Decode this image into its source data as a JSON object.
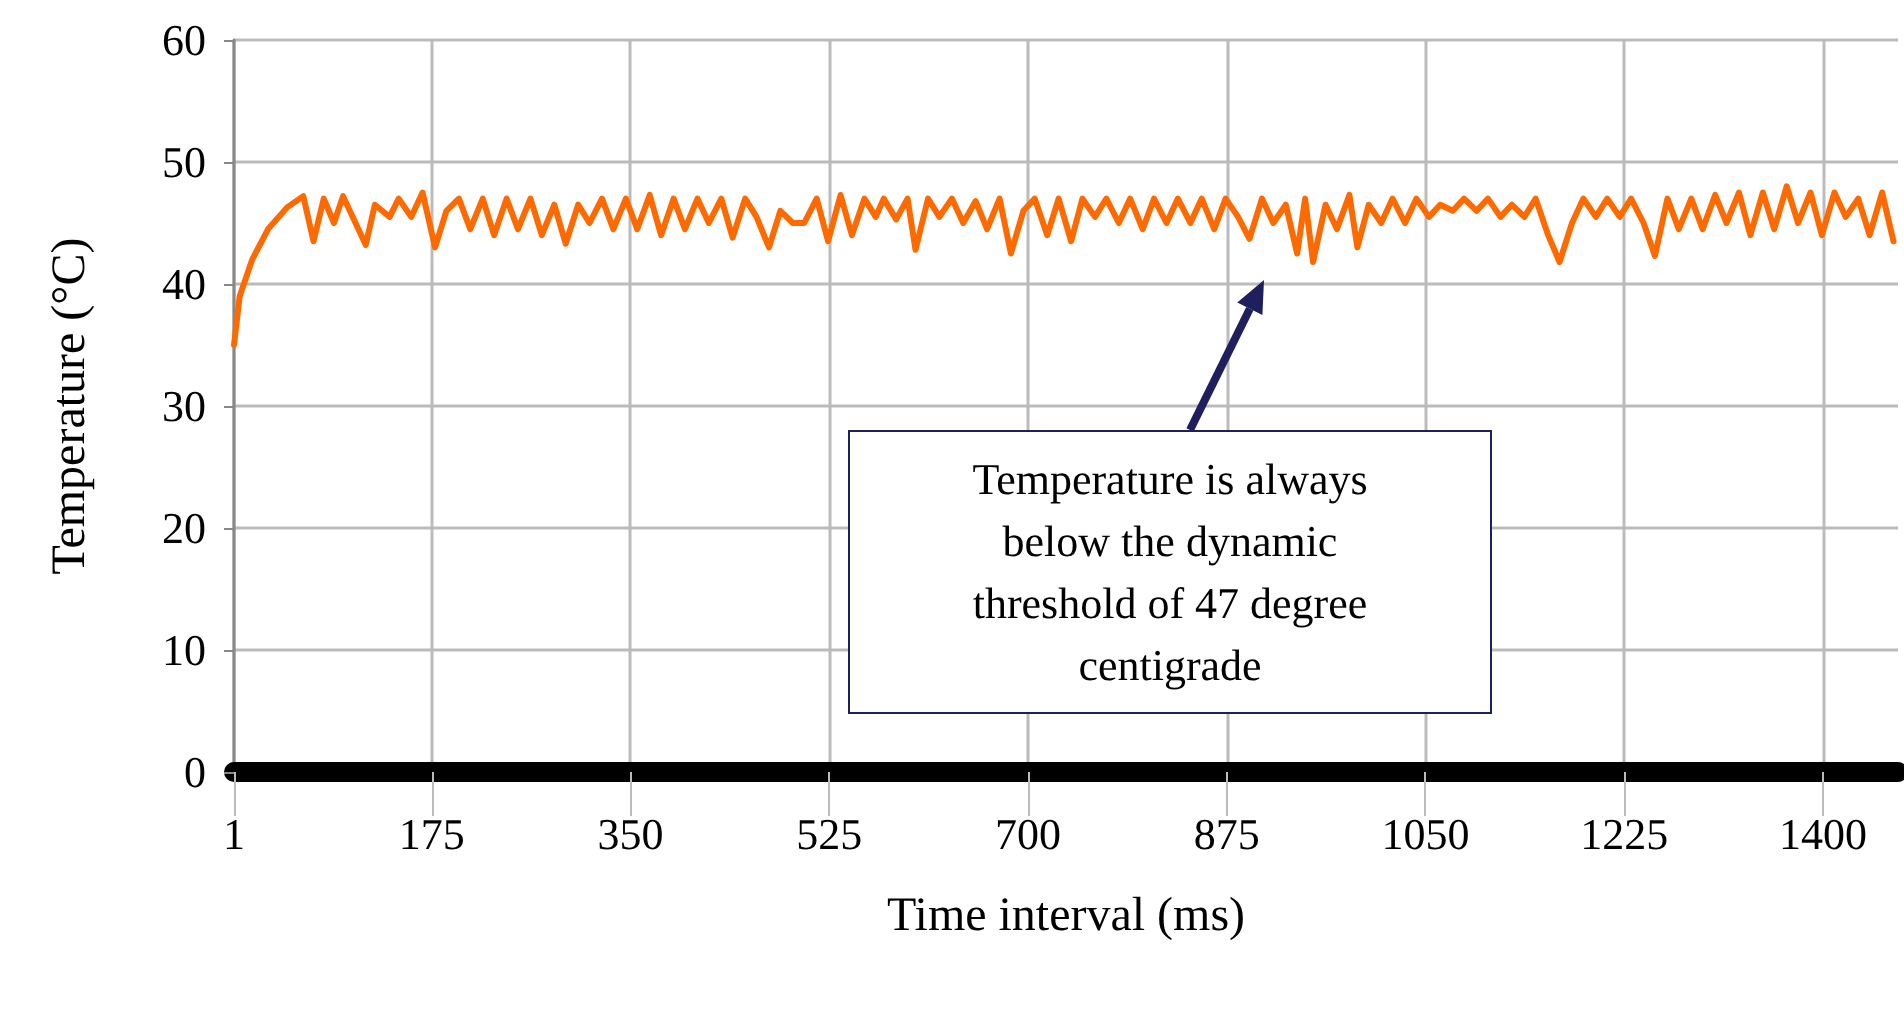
{
  "chart_data": {
    "type": "line",
    "xlabel": "Time interval (ms)",
    "ylabel": "Temperature (°C)",
    "xlim": [
      1,
      1466
    ],
    "xticks": [
      1,
      175,
      350,
      525,
      700,
      875,
      1050,
      1225,
      1400
    ],
    "ylim": [
      0,
      60
    ],
    "yticks": [
      0,
      10,
      20,
      30,
      40,
      50,
      60
    ],
    "grid": true,
    "marker": "none",
    "line_style": "solid",
    "annotations": [
      "Temperature is always below the dynamic threshold of 47 degree centigrade"
    ],
    "series": [
      {
        "color": "#ff6a00",
        "x": [
          1,
          6,
          17,
          31,
          48,
          62,
          71,
          80,
          89,
          97,
          108,
          117,
          125,
          138,
          146,
          157,
          167,
          178,
          188,
          199,
          209,
          220,
          230,
          241,
          251,
          262,
          272,
          283,
          293,
          304,
          314,
          325,
          335,
          346,
          356,
          367,
          377,
          388,
          398,
          409,
          419,
          430,
          440,
          451,
          461,
          472,
          482,
          493,
          503,
          514,
          524,
          535,
          545,
          556,
          566,
          573,
          584,
          594,
          601,
          612,
          622,
          633,
          643,
          654,
          664,
          675,
          685,
          696,
          706,
          717,
          727,
          738,
          748,
          759,
          769,
          780,
          790,
          801,
          811,
          822,
          832,
          843,
          853,
          864,
          874,
          885,
          895,
          906,
          916,
          927,
          937,
          944,
          951,
          962,
          972,
          983,
          990,
          1000,
          1011,
          1021,
          1032,
          1042,
          1053,
          1063,
          1074,
          1084,
          1095,
          1105,
          1116,
          1126,
          1137,
          1147,
          1158,
          1168,
          1179,
          1189,
          1200,
          1210,
          1221,
          1231,
          1242,
          1252,
          1263,
          1273,
          1284,
          1294,
          1305,
          1315,
          1326,
          1336,
          1347,
          1357,
          1368,
          1378,
          1389,
          1399,
          1410,
          1420,
          1431,
          1441,
          1452,
          1462
        ],
        "values": [
          35,
          39,
          42,
          44.5,
          46.3,
          47.2,
          43.5,
          47,
          45,
          47.2,
          45,
          43.2,
          46.5,
          45.5,
          47,
          45.5,
          47.5,
          43,
          46,
          47,
          44.5,
          47,
          44,
          47,
          44.5,
          47,
          44,
          46.5,
          43.3,
          46.5,
          45,
          47,
          44.5,
          47,
          44.5,
          47.3,
          44,
          47,
          44.5,
          47,
          45,
          47,
          43.8,
          47,
          45.5,
          43,
          46,
          45,
          45,
          47,
          43.5,
          47.3,
          44,
          47,
          45.5,
          47,
          45.3,
          47,
          42.8,
          47,
          45.5,
          47,
          45,
          46.8,
          44.5,
          47,
          42.5,
          46,
          47,
          44,
          47,
          43.5,
          47,
          45.5,
          47,
          45,
          47,
          44.5,
          47,
          45,
          47,
          45,
          47,
          44.5,
          47,
          45.5,
          43.7,
          47,
          45,
          46.5,
          42.5,
          47,
          41.8,
          46.5,
          44.5,
          47.3,
          43,
          46.5,
          45,
          47,
          45,
          47,
          45.5,
          46.5,
          46,
          47,
          46,
          47,
          45.5,
          46.5,
          45.5,
          47,
          44,
          41.8,
          45,
          47,
          45.5,
          47,
          45.5,
          47,
          45,
          42.3,
          47,
          44.5,
          47,
          44.5,
          47.3,
          45,
          47.5,
          44,
          47.5,
          44.5,
          48,
          45,
          47.5,
          44,
          47.5,
          45.5,
          47,
          44,
          47.5,
          43.5
        ]
      }
    ]
  }
}
